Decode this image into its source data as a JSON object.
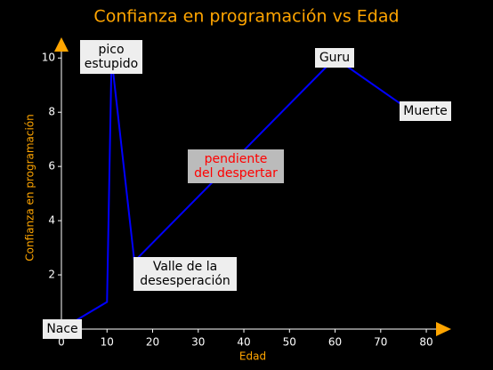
{
  "chart_data": {
    "type": "line",
    "title": "Confianza en programación vs Edad",
    "xlabel": "Edad",
    "ylabel": "Confianza en programación",
    "x": [
      0,
      10,
      11,
      16,
      60,
      77
    ],
    "series": [
      {
        "color": "#0000ff",
        "values": [
          0,
          1,
          10,
          2.5,
          10,
          8
        ]
      }
    ],
    "xlim": [
      0,
      83.5
    ],
    "ylim": [
      0,
      10.5
    ],
    "xticks": [
      0,
      10,
      20,
      30,
      40,
      50,
      60,
      70,
      80
    ],
    "yticks": [
      2,
      4,
      6,
      8,
      10
    ],
    "annotations": [
      {
        "lines": [
          "Nace"
        ]
      },
      {
        "lines": [
          "pico",
          "estupido"
        ]
      },
      {
        "lines": [
          "Valle de la",
          "desesperación"
        ]
      },
      {
        "lines": [
          "pendiente",
          "del despertar"
        ]
      },
      {
        "lines": [
          "Guru"
        ]
      },
      {
        "lines": [
          "Muerte"
        ]
      }
    ]
  }
}
